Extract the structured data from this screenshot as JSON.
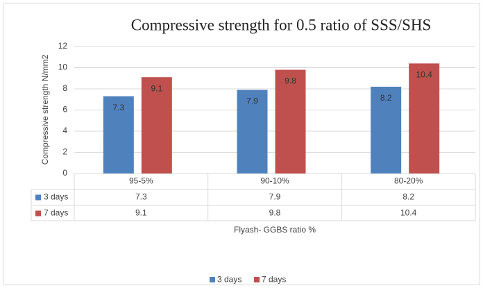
{
  "chart_data": {
    "type": "bar",
    "title": "Compressive strength for 0.5 ratio of  SSS/SHS",
    "y_label": "Compressive strength N/mm2",
    "x_label": "Flyash- GGBS ratio %",
    "categories": [
      "95-5%",
      "90-10%",
      "80-20%"
    ],
    "series": [
      {
        "name": "3 days",
        "color": "#4f81bd",
        "values": [
          7.3,
          7.9,
          8.2
        ]
      },
      {
        "name": "7 days",
        "color": "#c0504d",
        "values": [
          9.1,
          9.8,
          10.4
        ]
      }
    ],
    "ylim": [
      0,
      12
    ],
    "yticks": [
      0,
      2,
      4,
      6,
      8,
      10,
      12
    ],
    "grid": true,
    "legend": "bottom"
  }
}
